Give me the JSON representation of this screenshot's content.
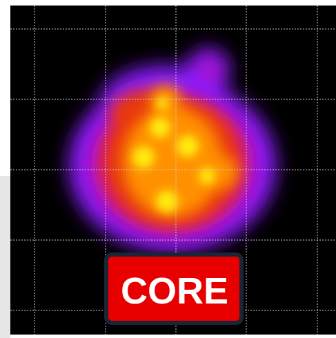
{
  "label": {
    "text": "CORE"
  }
}
